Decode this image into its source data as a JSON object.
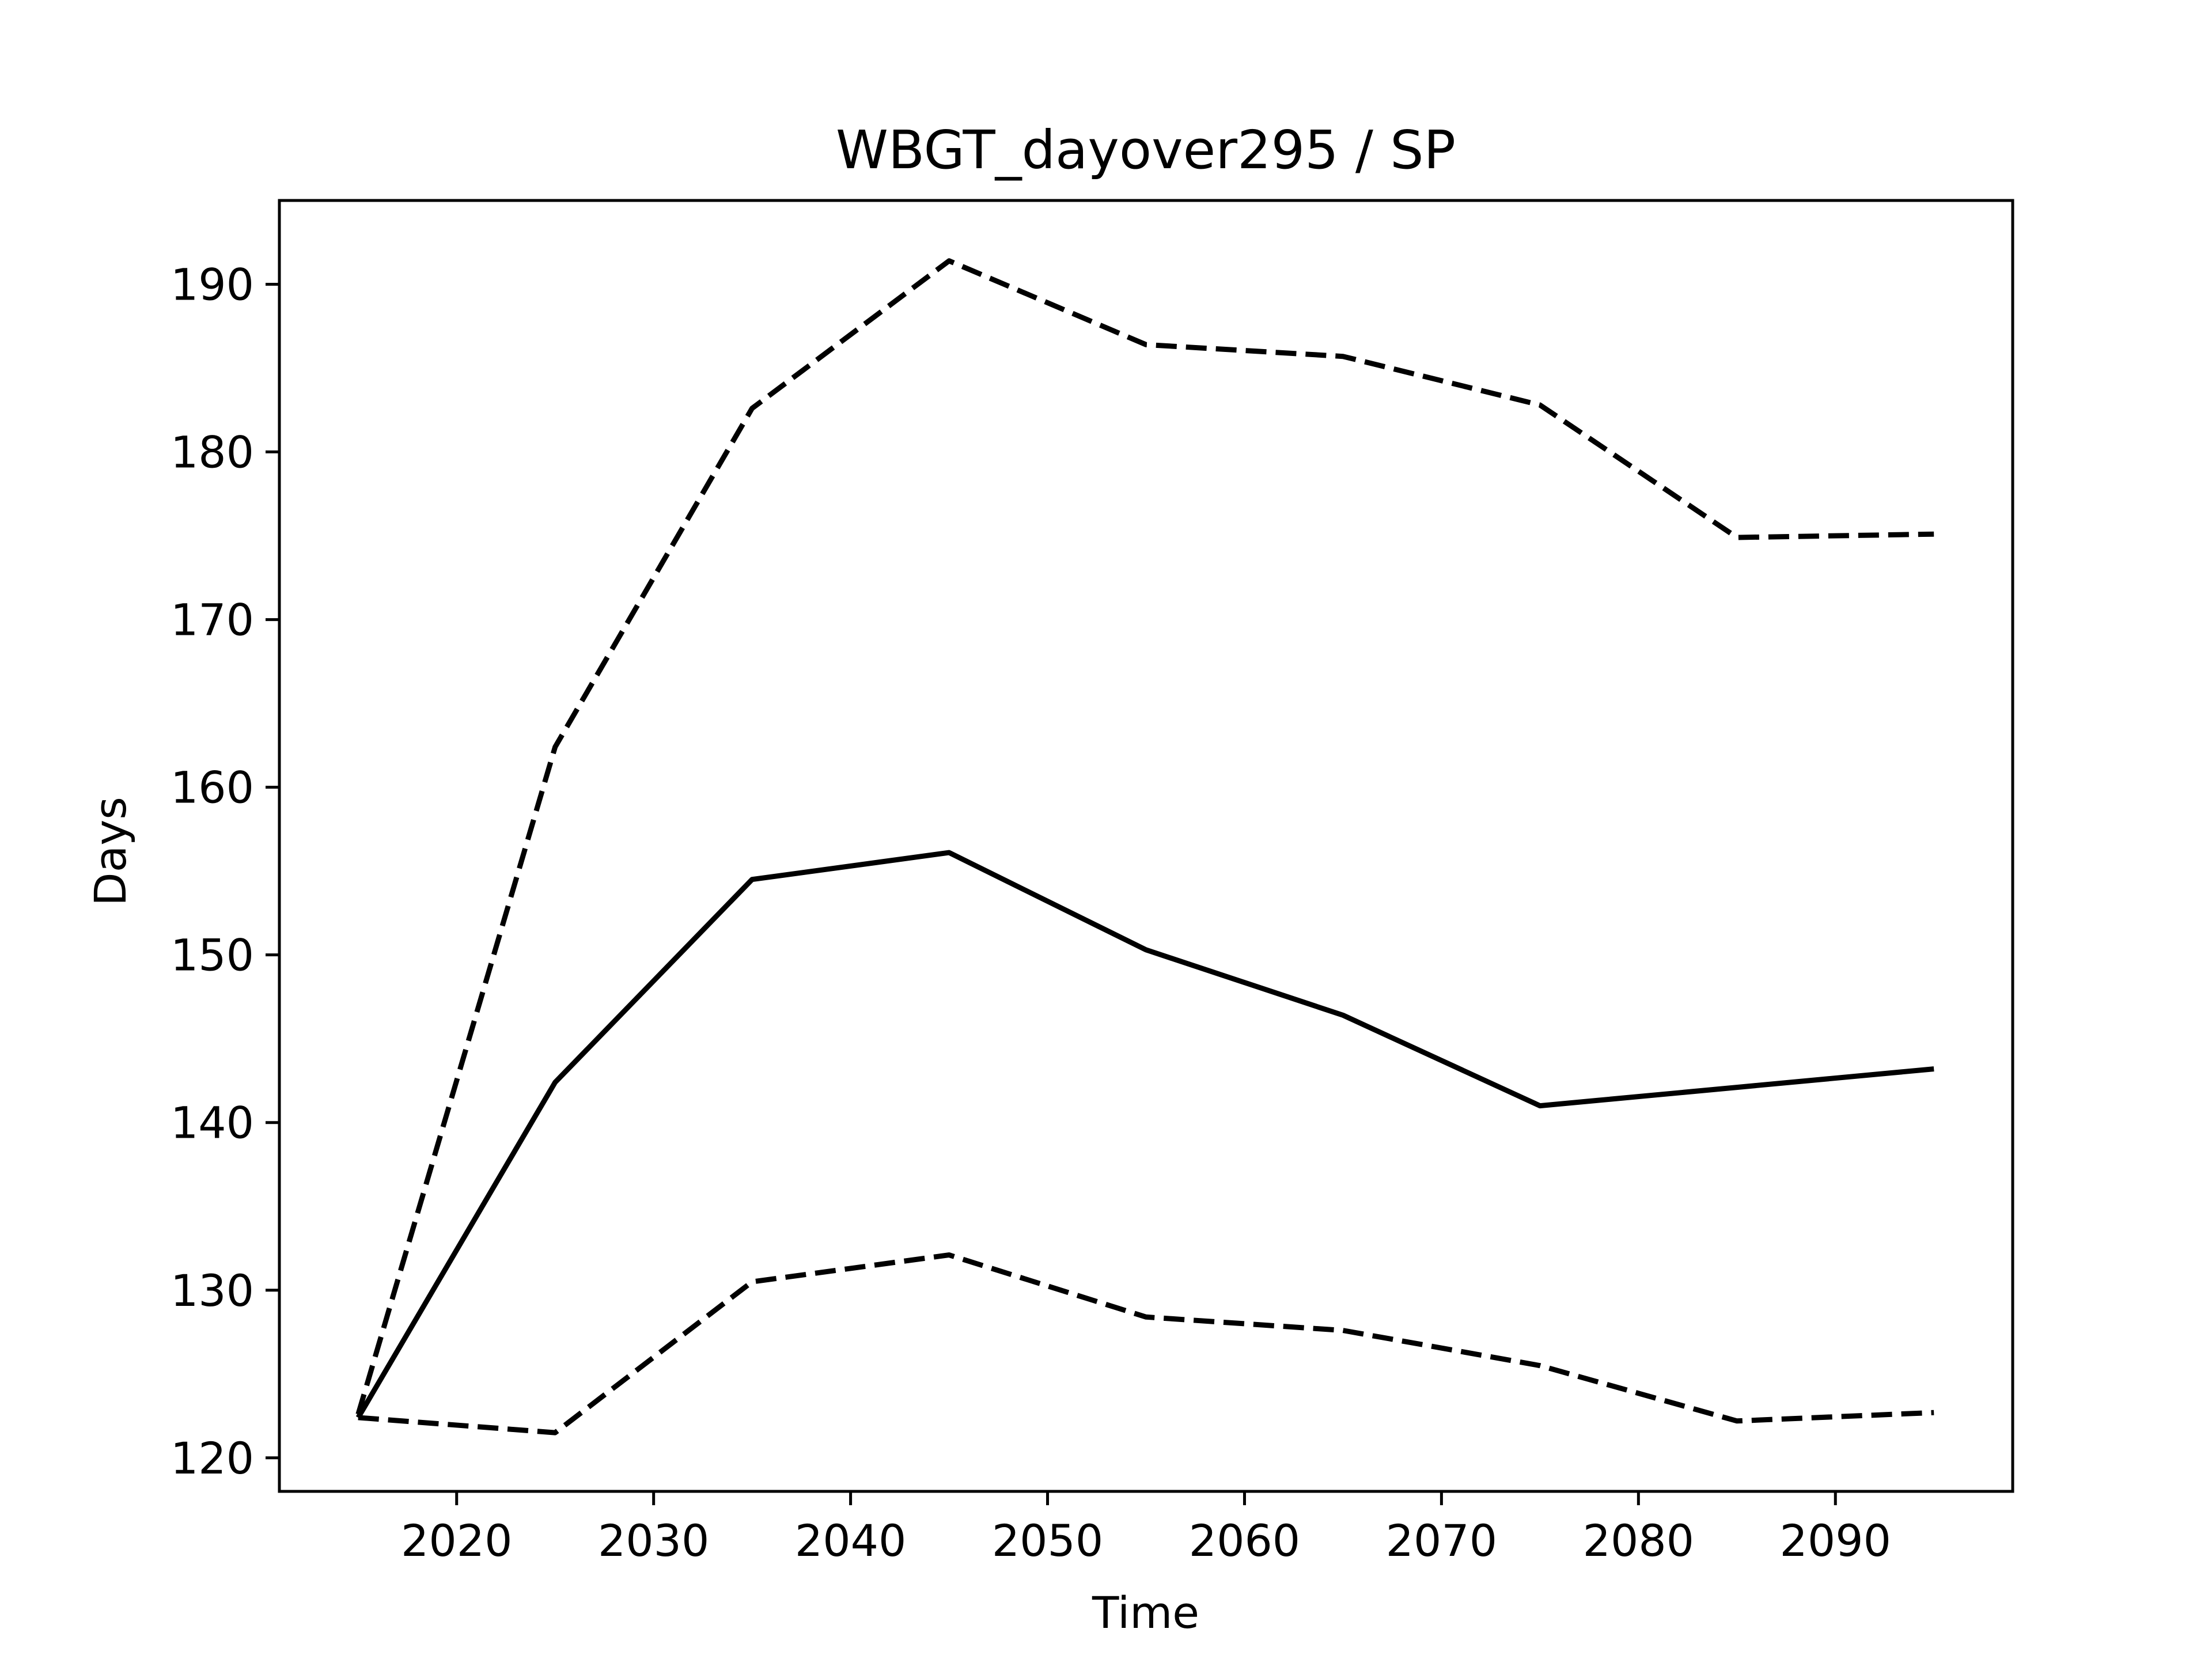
{
  "chart_data": {
    "type": "line",
    "title": "WBGT_dayover295 / SP",
    "xlabel": "Time",
    "ylabel": "Days",
    "xlim": [
      2011,
      2099
    ],
    "ylim": [
      118.0,
      195.0
    ],
    "xticks": [
      2020,
      2030,
      2040,
      2050,
      2060,
      2070,
      2080,
      2090
    ],
    "yticks": [
      120,
      130,
      140,
      150,
      160,
      170,
      180,
      190
    ],
    "grid": false,
    "legend": "none",
    "x": [
      2015,
      2025,
      2035,
      2045,
      2055,
      2065,
      2075,
      2085,
      2095
    ],
    "series": [
      {
        "style": "solid",
        "values": [
          122.4,
          142.4,
          154.5,
          156.1,
          150.3,
          146.4,
          141.0,
          142.1,
          143.2
        ]
      },
      {
        "style": "dashed",
        "values": [
          122.6,
          162.4,
          182.6,
          191.4,
          186.4,
          185.7,
          182.8,
          174.9,
          175.1
        ]
      },
      {
        "style": "dashed",
        "values": [
          122.4,
          121.5,
          130.5,
          132.1,
          128.4,
          127.6,
          125.5,
          122.2,
          122.7
        ]
      }
    ],
    "colors": {
      "line": "#000000",
      "axes": "#000000",
      "background": "#ffffff"
    }
  }
}
